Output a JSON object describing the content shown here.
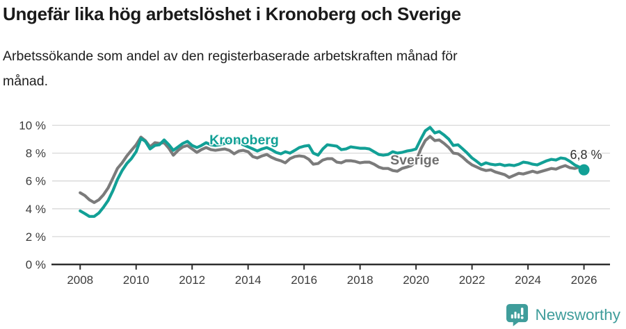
{
  "header": {
    "title": "Ungefär lika hög arbetslöshet i Kronoberg och Sverige",
    "subtitle": "Arbetssökande som andel av den registerbaserade arbetskraften månad för månad."
  },
  "footer": {
    "brand": "Newsworthy",
    "logo_icon": "speech-bubble-bar-chart-icon"
  },
  "colors": {
    "kronoberg": "#12a096",
    "sverige": "#7b7b7b",
    "sverige_label": "#6e6e6e",
    "annotation": "#2e2e2e",
    "grid": "#d8d8d8",
    "axis": "#2e2e2e",
    "tick_label": "#3c3c3c",
    "logo_teal": "#3f9d9b"
  },
  "chart_data": {
    "type": "line",
    "title": "Ungefär lika hög arbetslöshet i Kronoberg och Sverige",
    "xlabel": "",
    "ylabel": "",
    "xlim": [
      2007.0,
      2026.93
    ],
    "ylim": [
      0,
      10
    ],
    "grid": "horizontal",
    "legend_position": "inline-labels",
    "x_ticks": {
      "values": [
        2008,
        2010,
        2012,
        2014,
        2016,
        2018,
        2020,
        2022,
        2024,
        2026
      ],
      "labels": [
        "2008",
        "2010",
        "2012",
        "2014",
        "2016",
        "2018",
        "2020",
        "2022",
        "2024",
        "2026"
      ]
    },
    "y_ticks": {
      "values": [
        0,
        2,
        4,
        6,
        8,
        10
      ],
      "labels": [
        "0 %",
        "2 %",
        "4 %",
        "6 %",
        "8 %",
        "10 %"
      ]
    },
    "series": [
      {
        "name": "Sverige",
        "color": "#7b7b7b",
        "points": [
          [
            2008.0,
            5.15
          ],
          [
            2008.17,
            4.95
          ],
          [
            2008.33,
            4.65
          ],
          [
            2008.5,
            4.45
          ],
          [
            2008.67,
            4.65
          ],
          [
            2008.83,
            5.0
          ],
          [
            2009.0,
            5.5
          ],
          [
            2009.17,
            6.2
          ],
          [
            2009.33,
            6.9
          ],
          [
            2009.5,
            7.3
          ],
          [
            2009.67,
            7.8
          ],
          [
            2009.83,
            8.2
          ],
          [
            2010.0,
            8.6
          ],
          [
            2010.17,
            9.15
          ],
          [
            2010.33,
            8.9
          ],
          [
            2010.5,
            8.45
          ],
          [
            2010.67,
            8.75
          ],
          [
            2010.83,
            8.7
          ],
          [
            2011.0,
            8.75
          ],
          [
            2011.17,
            8.35
          ],
          [
            2011.33,
            7.85
          ],
          [
            2011.5,
            8.2
          ],
          [
            2011.67,
            8.45
          ],
          [
            2011.83,
            8.55
          ],
          [
            2012.0,
            8.3
          ],
          [
            2012.17,
            8.05
          ],
          [
            2012.33,
            8.25
          ],
          [
            2012.5,
            8.4
          ],
          [
            2012.67,
            8.25
          ],
          [
            2012.83,
            8.2
          ],
          [
            2013.0,
            8.25
          ],
          [
            2013.17,
            8.3
          ],
          [
            2013.33,
            8.2
          ],
          [
            2013.5,
            7.95
          ],
          [
            2013.67,
            8.15
          ],
          [
            2013.83,
            8.2
          ],
          [
            2014.0,
            8.1
          ],
          [
            2014.17,
            7.75
          ],
          [
            2014.33,
            7.65
          ],
          [
            2014.5,
            7.8
          ],
          [
            2014.67,
            7.9
          ],
          [
            2014.83,
            7.7
          ],
          [
            2015.0,
            7.55
          ],
          [
            2015.17,
            7.45
          ],
          [
            2015.33,
            7.3
          ],
          [
            2015.5,
            7.6
          ],
          [
            2015.67,
            7.75
          ],
          [
            2015.83,
            7.8
          ],
          [
            2016.0,
            7.75
          ],
          [
            2016.17,
            7.55
          ],
          [
            2016.33,
            7.2
          ],
          [
            2016.5,
            7.25
          ],
          [
            2016.67,
            7.5
          ],
          [
            2016.83,
            7.6
          ],
          [
            2017.0,
            7.6
          ],
          [
            2017.17,
            7.35
          ],
          [
            2017.33,
            7.3
          ],
          [
            2017.5,
            7.45
          ],
          [
            2017.67,
            7.45
          ],
          [
            2017.83,
            7.4
          ],
          [
            2018.0,
            7.3
          ],
          [
            2018.17,
            7.35
          ],
          [
            2018.33,
            7.35
          ],
          [
            2018.5,
            7.2
          ],
          [
            2018.67,
            7.0
          ],
          [
            2018.83,
            6.9
          ],
          [
            2019.0,
            6.9
          ],
          [
            2019.17,
            6.75
          ],
          [
            2019.33,
            6.7
          ],
          [
            2019.5,
            6.9
          ],
          [
            2019.67,
            7.0
          ],
          [
            2019.83,
            7.1
          ],
          [
            2020.0,
            7.4
          ],
          [
            2020.17,
            8.3
          ],
          [
            2020.33,
            8.9
          ],
          [
            2020.5,
            9.2
          ],
          [
            2020.67,
            8.9
          ],
          [
            2020.83,
            8.95
          ],
          [
            2021.0,
            8.7
          ],
          [
            2021.17,
            8.4
          ],
          [
            2021.33,
            8.0
          ],
          [
            2021.5,
            7.95
          ],
          [
            2021.67,
            7.7
          ],
          [
            2021.83,
            7.4
          ],
          [
            2022.0,
            7.15
          ],
          [
            2022.17,
            7.0
          ],
          [
            2022.33,
            6.85
          ],
          [
            2022.5,
            6.75
          ],
          [
            2022.67,
            6.8
          ],
          [
            2022.83,
            6.65
          ],
          [
            2023.0,
            6.55
          ],
          [
            2023.17,
            6.45
          ],
          [
            2023.33,
            6.25
          ],
          [
            2023.5,
            6.4
          ],
          [
            2023.67,
            6.55
          ],
          [
            2023.83,
            6.5
          ],
          [
            2024.0,
            6.6
          ],
          [
            2024.17,
            6.7
          ],
          [
            2024.33,
            6.6
          ],
          [
            2024.5,
            6.7
          ],
          [
            2024.67,
            6.8
          ],
          [
            2024.83,
            6.9
          ],
          [
            2025.0,
            6.85
          ],
          [
            2025.17,
            7.0
          ],
          [
            2025.33,
            7.1
          ],
          [
            2025.5,
            6.95
          ],
          [
            2025.67,
            6.9
          ],
          [
            2025.83,
            7.0
          ],
          [
            2026.0,
            6.85
          ]
        ]
      },
      {
        "name": "Kronoberg",
        "color": "#12a096",
        "points": [
          [
            2008.0,
            3.85
          ],
          [
            2008.17,
            3.65
          ],
          [
            2008.33,
            3.45
          ],
          [
            2008.5,
            3.45
          ],
          [
            2008.67,
            3.7
          ],
          [
            2008.83,
            4.1
          ],
          [
            2009.0,
            4.6
          ],
          [
            2009.17,
            5.3
          ],
          [
            2009.33,
            6.1
          ],
          [
            2009.5,
            6.75
          ],
          [
            2009.67,
            7.25
          ],
          [
            2009.83,
            7.6
          ],
          [
            2010.0,
            8.1
          ],
          [
            2010.17,
            9.05
          ],
          [
            2010.33,
            8.85
          ],
          [
            2010.5,
            8.3
          ],
          [
            2010.67,
            8.55
          ],
          [
            2010.83,
            8.6
          ],
          [
            2011.0,
            8.95
          ],
          [
            2011.17,
            8.6
          ],
          [
            2011.33,
            8.2
          ],
          [
            2011.5,
            8.45
          ],
          [
            2011.67,
            8.7
          ],
          [
            2011.83,
            8.85
          ],
          [
            2012.0,
            8.55
          ],
          [
            2012.17,
            8.4
          ],
          [
            2012.33,
            8.55
          ],
          [
            2012.5,
            8.75
          ],
          [
            2012.67,
            8.6
          ],
          [
            2012.83,
            8.55
          ],
          [
            2013.0,
            8.6
          ],
          [
            2013.17,
            8.7
          ],
          [
            2013.33,
            8.8
          ],
          [
            2013.5,
            8.9
          ],
          [
            2013.67,
            8.75
          ],
          [
            2013.83,
            8.6
          ],
          [
            2014.0,
            8.45
          ],
          [
            2014.17,
            8.3
          ],
          [
            2014.33,
            8.15
          ],
          [
            2014.5,
            8.3
          ],
          [
            2014.67,
            8.4
          ],
          [
            2014.83,
            8.25
          ],
          [
            2015.0,
            8.05
          ],
          [
            2015.17,
            7.95
          ],
          [
            2015.33,
            8.1
          ],
          [
            2015.5,
            8.0
          ],
          [
            2015.67,
            8.2
          ],
          [
            2015.83,
            8.4
          ],
          [
            2016.0,
            8.5
          ],
          [
            2016.17,
            8.55
          ],
          [
            2016.33,
            8.0
          ],
          [
            2016.5,
            7.85
          ],
          [
            2016.67,
            8.3
          ],
          [
            2016.83,
            8.6
          ],
          [
            2017.0,
            8.55
          ],
          [
            2017.17,
            8.5
          ],
          [
            2017.33,
            8.25
          ],
          [
            2017.5,
            8.3
          ],
          [
            2017.67,
            8.45
          ],
          [
            2017.83,
            8.4
          ],
          [
            2018.0,
            8.35
          ],
          [
            2018.17,
            8.35
          ],
          [
            2018.33,
            8.3
          ],
          [
            2018.5,
            8.1
          ],
          [
            2018.67,
            7.9
          ],
          [
            2018.83,
            7.85
          ],
          [
            2019.0,
            7.9
          ],
          [
            2019.17,
            8.1
          ],
          [
            2019.33,
            8.0
          ],
          [
            2019.5,
            8.05
          ],
          [
            2019.67,
            8.15
          ],
          [
            2019.83,
            8.2
          ],
          [
            2020.0,
            8.3
          ],
          [
            2020.17,
            9.0
          ],
          [
            2020.33,
            9.6
          ],
          [
            2020.5,
            9.85
          ],
          [
            2020.67,
            9.45
          ],
          [
            2020.83,
            9.55
          ],
          [
            2021.0,
            9.3
          ],
          [
            2021.17,
            9.0
          ],
          [
            2021.33,
            8.55
          ],
          [
            2021.5,
            8.6
          ],
          [
            2021.67,
            8.3
          ],
          [
            2021.83,
            8.0
          ],
          [
            2022.0,
            7.65
          ],
          [
            2022.17,
            7.4
          ],
          [
            2022.33,
            7.15
          ],
          [
            2022.5,
            7.3
          ],
          [
            2022.67,
            7.2
          ],
          [
            2022.83,
            7.15
          ],
          [
            2023.0,
            7.2
          ],
          [
            2023.17,
            7.1
          ],
          [
            2023.33,
            7.15
          ],
          [
            2023.5,
            7.1
          ],
          [
            2023.67,
            7.2
          ],
          [
            2023.83,
            7.35
          ],
          [
            2024.0,
            7.3
          ],
          [
            2024.17,
            7.2
          ],
          [
            2024.33,
            7.15
          ],
          [
            2024.5,
            7.3
          ],
          [
            2024.67,
            7.45
          ],
          [
            2024.83,
            7.55
          ],
          [
            2025.0,
            7.5
          ],
          [
            2025.17,
            7.65
          ],
          [
            2025.33,
            7.6
          ],
          [
            2025.5,
            7.4
          ],
          [
            2025.67,
            7.15
          ],
          [
            2025.83,
            7.0
          ],
          [
            2026.0,
            6.8
          ]
        ]
      }
    ],
    "end_dot": {
      "series": "Kronoberg",
      "x": 2026.0,
      "y": 6.8
    },
    "annotations": [
      {
        "text": "Kronoberg",
        "x": 2012.62,
        "y": 8.62,
        "color": "#12a096",
        "bold": true,
        "size": 19.5
      },
      {
        "text": "Sverige",
        "x": 2019.08,
        "y": 7.18,
        "color": "#6e6e6e",
        "bold": true,
        "size": 19.5
      },
      {
        "text": "6,8 %",
        "x": 2025.5,
        "y": 7.58,
        "color": "#2e2e2e",
        "bold": false,
        "size": 18
      }
    ]
  }
}
